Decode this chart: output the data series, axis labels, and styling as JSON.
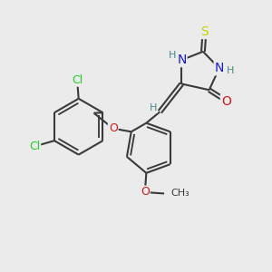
{
  "bg_color": "#ebebeb",
  "bond_color": "#3a3a3a",
  "bond_width": 1.5,
  "atom_colors": {
    "N": "#1a1acc",
    "O": "#cc1a1a",
    "S": "#cccc00",
    "Cl": "#22cc22",
    "C": "#3a3a3a",
    "H": "#4a8888"
  },
  "figsize": [
    3.0,
    3.0
  ],
  "dpi": 100
}
